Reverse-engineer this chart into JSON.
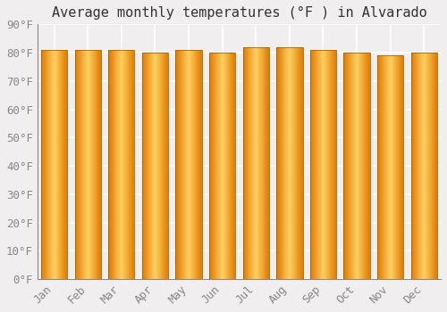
{
  "title": "Average monthly temperatures (°F ) in Alvarado",
  "months": [
    "Jan",
    "Feb",
    "Mar",
    "Apr",
    "May",
    "Jun",
    "Jul",
    "Aug",
    "Sep",
    "Oct",
    "Nov",
    "Dec"
  ],
  "temperatures": [
    81,
    81,
    81,
    80,
    81,
    80,
    82,
    82,
    81,
    80,
    79,
    80
  ],
  "ylim": [
    0,
    90
  ],
  "yticks": [
    0,
    10,
    20,
    30,
    40,
    50,
    60,
    70,
    80,
    90
  ],
  "bar_color_left": "#E07800",
  "bar_color_center": "#FFD060",
  "bar_color_right": "#E07800",
  "bar_edge_color": "#AA6600",
  "background_color": "#f0eeee",
  "plot_bg_color": "#f0eeee",
  "grid_color": "#ffffff",
  "title_fontsize": 11,
  "tick_fontsize": 9,
  "tick_color": "#888888"
}
